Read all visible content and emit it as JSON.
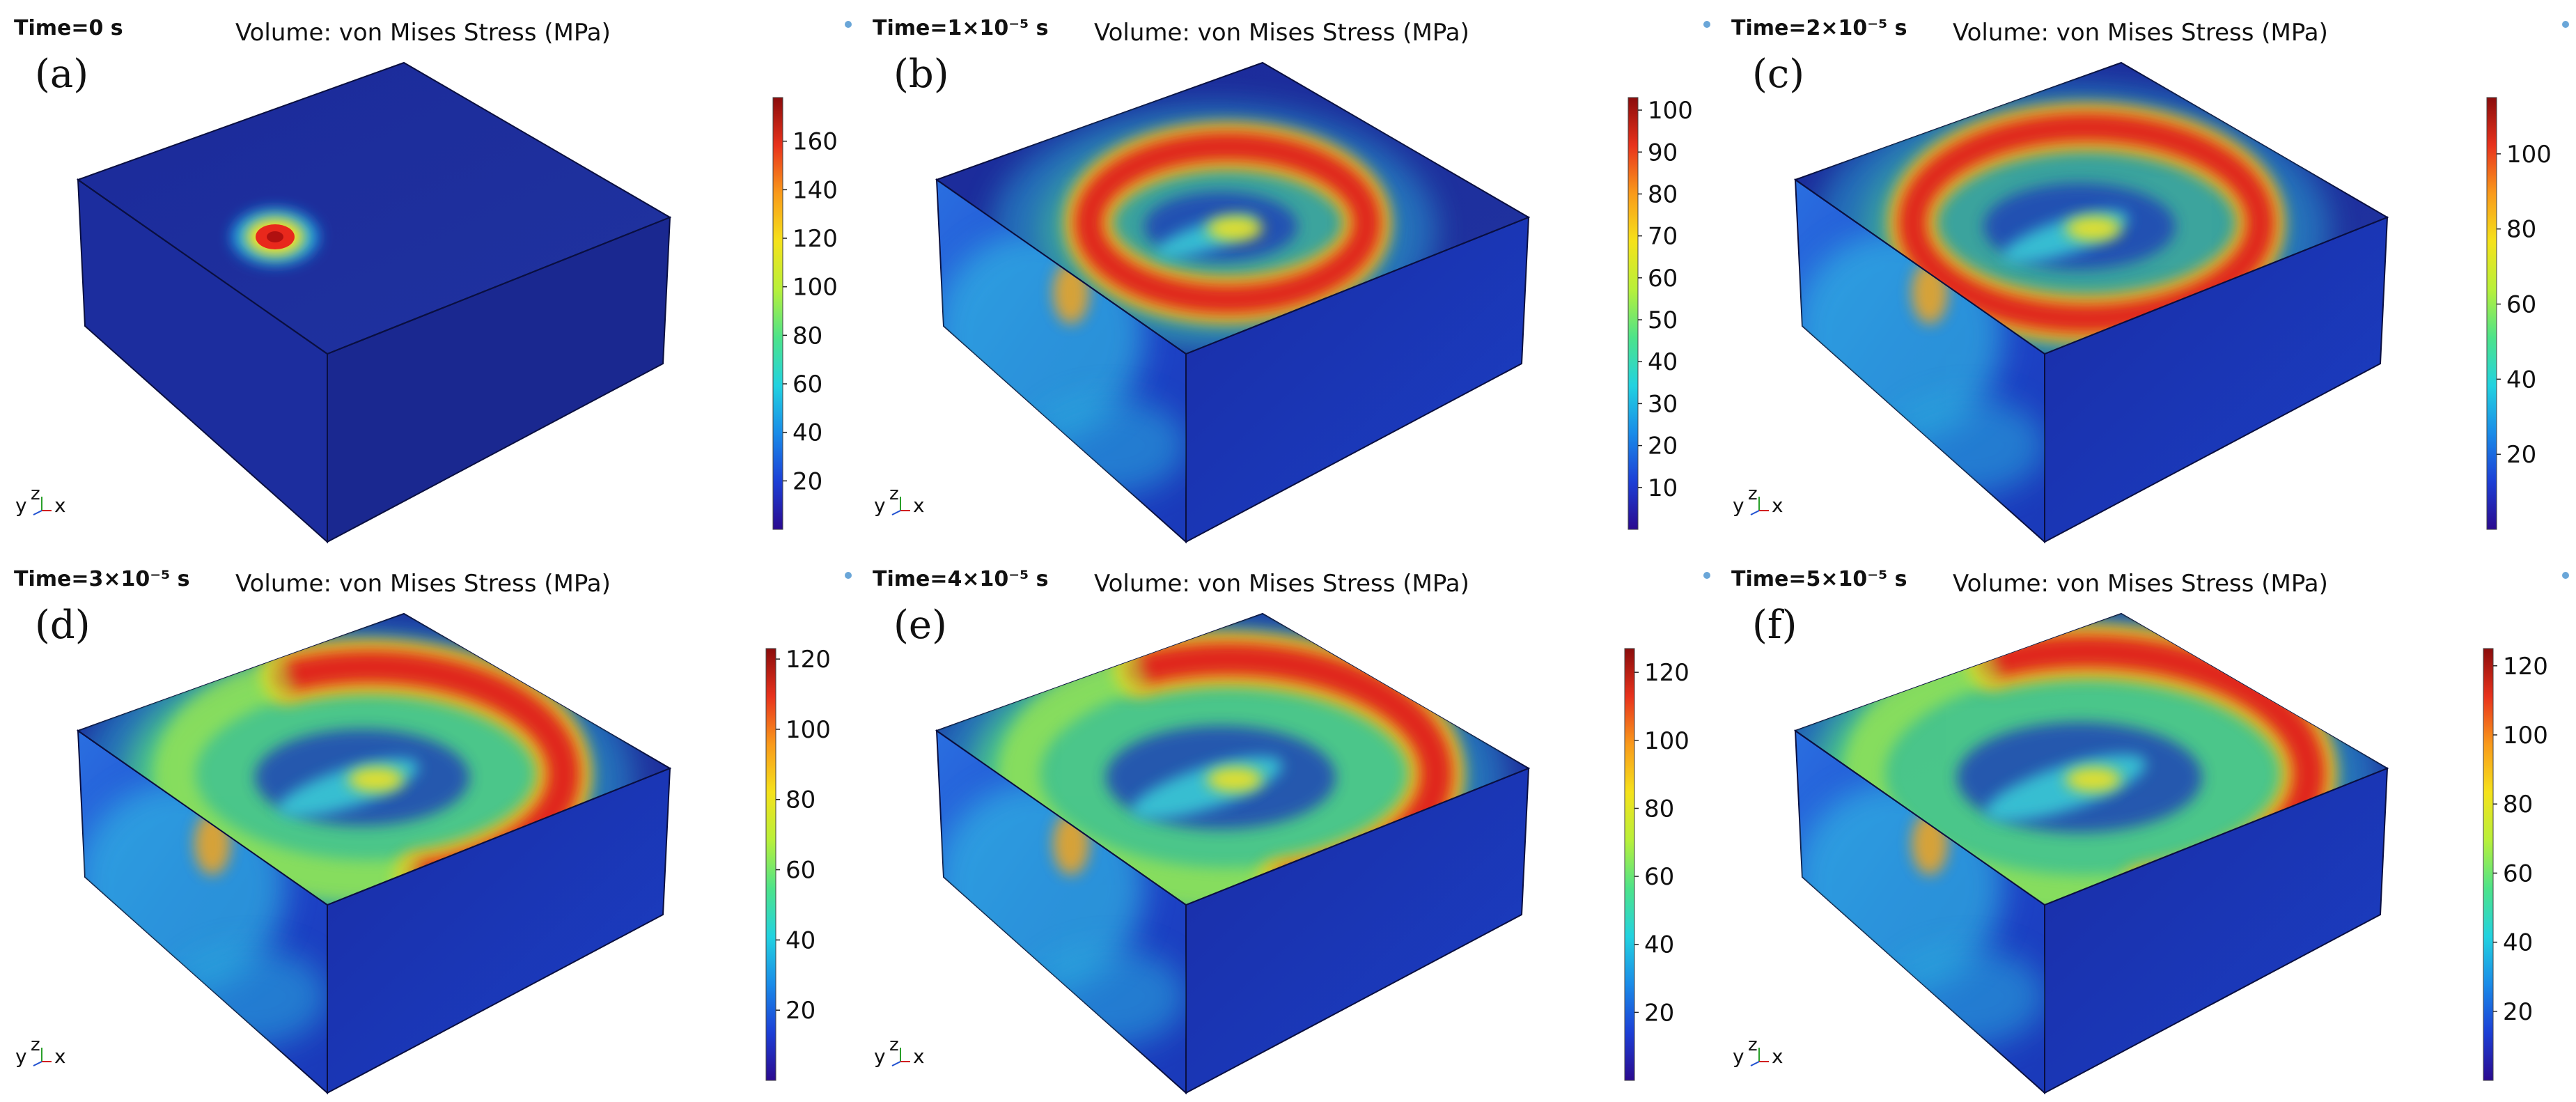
{
  "panels": [
    {
      "label": "(a)",
      "time_label": "Time=0 s",
      "title": "Volume: von Mises Stress (MPa)",
      "colorbar": {
        "min": 0,
        "max": 178,
        "ticks": [
          "20",
          "40",
          "60",
          "80",
          "100",
          "120",
          "140",
          "160"
        ]
      },
      "field": {
        "pattern": "spot",
        "peak_label": "160+"
      }
    },
    {
      "label": "(b)",
      "time_label": "Time=1×10⁻⁵ s",
      "title": "Volume: von Mises Stress (MPa)",
      "colorbar": {
        "min": 0,
        "max": 103,
        "ticks": [
          "10",
          "20",
          "30",
          "40",
          "50",
          "60",
          "70",
          "80",
          "90",
          "100"
        ]
      },
      "field": {
        "pattern": "ring",
        "ring_radius": 1.0
      }
    },
    {
      "label": "(c)",
      "time_label": "Time=2×10⁻⁵ s",
      "title": "Volume: von Mises Stress (MPa)",
      "colorbar": {
        "min": 0,
        "max": 115,
        "ticks": [
          "20",
          "40",
          "60",
          "80",
          "100"
        ]
      },
      "field": {
        "pattern": "ring",
        "ring_radius": 1.25
      }
    },
    {
      "label": "(d)",
      "time_label": "Time=3×10⁻⁵ s",
      "title": "Volume: von Mises Stress (MPa)",
      "colorbar": {
        "min": 0,
        "max": 123,
        "ticks": [
          "20",
          "40",
          "60",
          "80",
          "100",
          "120"
        ]
      },
      "field": {
        "pattern": "crescent",
        "ring_radius": 1.4
      }
    },
    {
      "label": "(e)",
      "time_label": "Time=4×10⁻⁵ s",
      "title": "Volume: von Mises Stress (MPa)",
      "colorbar": {
        "min": 0,
        "max": 127,
        "ticks": [
          "20",
          "40",
          "60",
          "80",
          "100",
          "120"
        ]
      },
      "field": {
        "pattern": "crescent",
        "ring_radius": 1.5
      }
    },
    {
      "label": "(f)",
      "time_label": "Time=5×10⁻⁵ s",
      "title": "Volume: von Mises Stress (MPa)",
      "colorbar": {
        "min": 0,
        "max": 125,
        "ticks": [
          "20",
          "40",
          "60",
          "80",
          "100",
          "120"
        ]
      },
      "field": {
        "pattern": "crescent",
        "ring_radius": 1.6
      }
    }
  ],
  "axis_triad": {
    "y": "y",
    "z": "z",
    "x": "x"
  },
  "colors": {
    "background_block": "#1c2d9e",
    "edge": "#0a0f40",
    "colormap": [
      "#2b0a8f",
      "#1c3fd6",
      "#1a8be8",
      "#22d2e0",
      "#4de38a",
      "#b8f03a",
      "#f5e21b",
      "#f99a1b",
      "#e8321c",
      "#8a0c0c"
    ]
  }
}
